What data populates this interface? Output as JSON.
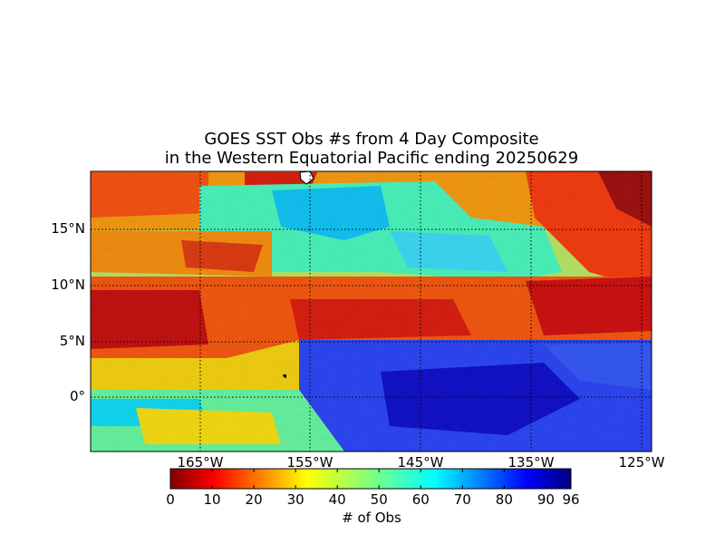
{
  "title": {
    "line1": "GOES SST Obs #s from 4 Day Composite",
    "line2": "in the Western Equatorial Pacific ending 20250629"
  },
  "map": {
    "lon_range_deg": [
      -175,
      -124
    ],
    "lat_range_deg": [
      -5,
      20
    ],
    "grid": "dotted",
    "colormap": "jet",
    "land_color": "#ffffff"
  },
  "lat_labels": [
    {
      "lat": 15,
      "text": "15°N"
    },
    {
      "lat": 10,
      "text": "10°N"
    },
    {
      "lat": 5,
      "text": "5°N"
    },
    {
      "lat": 0,
      "text": "0°"
    }
  ],
  "lon_labels": [
    {
      "lon": -165,
      "text": "165°W"
    },
    {
      "lon": -155,
      "text": "155°W"
    },
    {
      "lon": -145,
      "text": "145°W"
    },
    {
      "lon": -135,
      "text": "135°W"
    },
    {
      "lon": -125,
      "text": "125°W"
    }
  ],
  "colorbar": {
    "label": "# of Obs",
    "range": [
      0,
      96
    ],
    "ticks": [
      "0",
      "10",
      "20",
      "30",
      "40",
      "50",
      "60",
      "70",
      "80",
      "90",
      "96"
    ],
    "tick_values": [
      0,
      10,
      20,
      30,
      40,
      50,
      60,
      70,
      80,
      90,
      96
    ]
  }
}
